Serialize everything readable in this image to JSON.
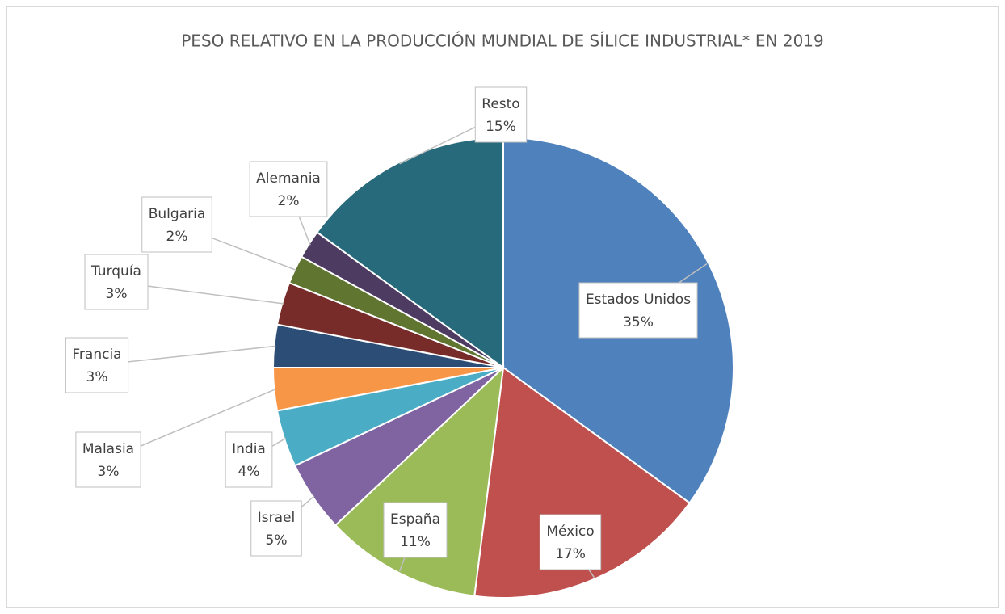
{
  "chart_data": {
    "type": "pie",
    "title": "PESO RELATIVO EN LA PRODUCCIÓN MUNDIAL DE SÍLICE INDUSTRIAL* EN 2019",
    "categories": [
      "Estados Unidos",
      "México",
      "España",
      "Israel",
      "India",
      "Malasia",
      "Francia",
      "Turquía",
      "Bulgaria",
      "Alemania",
      "Resto"
    ],
    "values": [
      35,
      17,
      11,
      5,
      4,
      3,
      3,
      3,
      2,
      2,
      15
    ],
    "value_labels": [
      "35%",
      "17%",
      "11%",
      "5%",
      "4%",
      "3%",
      "3%",
      "3%",
      "2%",
      "2%",
      "15%"
    ],
    "colors": [
      "#4f81bd",
      "#c0504d",
      "#9bbb59",
      "#8064a2",
      "#4bacc6",
      "#f79646",
      "#2c4d75",
      "#772c2a",
      "#5f7530",
      "#4d3b62",
      "#276a7c"
    ]
  }
}
